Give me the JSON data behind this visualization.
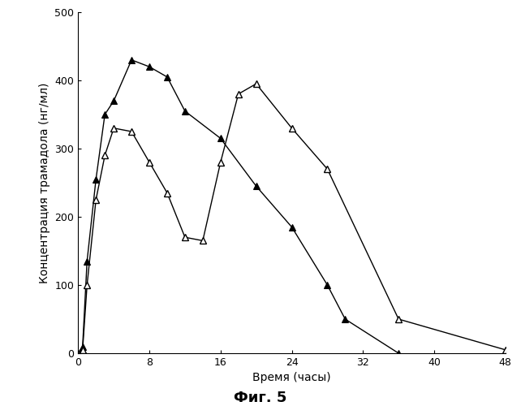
{
  "filled_x": [
    0,
    0.5,
    1,
    2,
    3,
    4,
    6,
    8,
    10,
    12,
    16,
    20,
    24,
    28,
    30,
    36
  ],
  "filled_y": [
    0,
    10,
    135,
    255,
    350,
    370,
    430,
    420,
    405,
    355,
    315,
    245,
    185,
    100,
    50,
    0
  ],
  "open_x": [
    0,
    0.5,
    1,
    2,
    3,
    4,
    6,
    8,
    10,
    12,
    14,
    16,
    18,
    20,
    24,
    28,
    36,
    48
  ],
  "open_y": [
    0,
    5,
    100,
    225,
    290,
    330,
    325,
    280,
    235,
    170,
    165,
    280,
    380,
    395,
    330,
    270,
    50,
    5
  ],
  "xlabel": "Время (часы)",
  "ylabel": "Концентрация трамадола (нг/мл)",
  "caption": "Фиг. 5",
  "xlim": [
    0,
    48
  ],
  "ylim": [
    0,
    500
  ],
  "xticks": [
    0,
    8,
    16,
    24,
    32,
    40,
    48
  ],
  "yticks": [
    0,
    100,
    200,
    300,
    400,
    500
  ],
  "bg_color": "#ffffff",
  "line_color": "#000000",
  "figsize": [
    6.42,
    5.0
  ],
  "dpi": 100
}
